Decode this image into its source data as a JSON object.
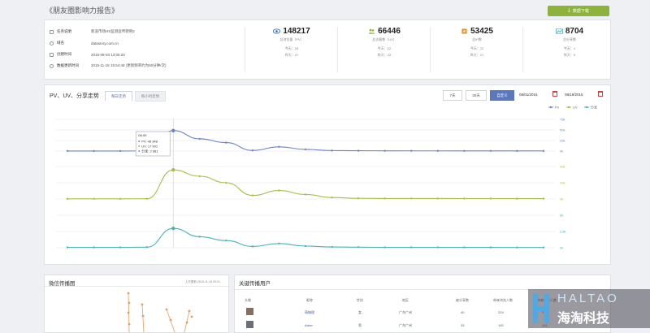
{
  "header": {
    "title": "《朋友圈影响力报告》",
    "download_label": "数据下载"
  },
  "info": {
    "rows": [
      {
        "label": "任务说明",
        "value": "新浪市场HS监测宣传转例2"
      },
      {
        "label": "域名",
        "value": "datastory.com.cn"
      },
      {
        "label": "创建时间",
        "value": "2015-08-03 13:05:20"
      },
      {
        "label": "数据更新时间",
        "value": "2015-11-18 15:54:48 (更新频率约为60分钟/次)"
      }
    ]
  },
  "stats": [
    {
      "value": "148217",
      "label": "总浏览量（PV）",
      "today": "今天：24",
      "yesterday": "昨天：47",
      "icon": "eye-icon",
      "color": "#3b6fb6"
    },
    {
      "value": "66446",
      "label": "总访客数（UV）",
      "today": "今天：12",
      "yesterday": "昨天：23",
      "icon": "people-icon",
      "color": "#8db33d"
    },
    {
      "value": "53425",
      "label": "总IP数",
      "today": "今天：11",
      "yesterday": "昨天：21",
      "icon": "ip-icon",
      "color": "#e29b2e"
    },
    {
      "value": "8704",
      "label": "总分享数",
      "today": "今天：1",
      "yesterday": "昨天：5",
      "icon": "trend-icon",
      "color": "#3fa7b8"
    }
  ],
  "chart_section": {
    "title": "PV、UV、分享走势",
    "tabs": [
      "每日走势",
      "每小时走势"
    ],
    "range_buttons": [
      "7天",
      "30天",
      "自定义"
    ],
    "date_from": "08/01/2015",
    "date_to": "08/19/2015",
    "legend": [
      "PV",
      "UV",
      "分享"
    ],
    "tooltip": {
      "date": "08-05",
      "lines": [
        "PV: 48 348",
        "UV: 17 901",
        "分享: 2 981"
      ]
    },
    "axes": {
      "pv_ticks": [
        "75k",
        "50k",
        "25k",
        "0k"
      ],
      "uv_ticks": [
        "20k",
        "10k",
        "0k"
      ],
      "share_ticks": [
        "5k",
        "2.5k",
        "0k"
      ]
    }
  },
  "chart_data": {
    "type": "line",
    "x": [
      1,
      2,
      3,
      4,
      5,
      6,
      7,
      8,
      9,
      10,
      11,
      12,
      13,
      14,
      15,
      16,
      17,
      18,
      19
    ],
    "series": [
      {
        "name": "PV",
        "color": "#6d84c4",
        "ylim": [
          0,
          75000
        ],
        "values": [
          200,
          200,
          200,
          300,
          48348,
          29000,
          20000,
          1500,
          10000,
          4000,
          1200,
          800,
          600,
          500,
          500,
          400,
          400,
          300,
          300
        ]
      },
      {
        "name": "UV",
        "color": "#a9be48",
        "ylim": [
          0,
          20000
        ],
        "values": [
          100,
          100,
          100,
          150,
          17901,
          14000,
          10000,
          2200,
          5200,
          2800,
          900,
          400,
          300,
          300,
          300,
          250,
          250,
          200,
          200
        ]
      },
      {
        "name": "分享",
        "color": "#4ab3ba",
        "ylim": [
          0,
          5000
        ],
        "values": [
          50,
          50,
          50,
          80,
          2981,
          1700,
          1100,
          200,
          650,
          250,
          120,
          80,
          60,
          60,
          60,
          50,
          50,
          40,
          40
        ]
      }
    ]
  },
  "weixin": {
    "title": "微信传播图",
    "updated": "上次更新:2015-11-18 00:01"
  },
  "key_users": {
    "title": "关键传播用户",
    "headers": [
      "头像",
      "昵称",
      "性别",
      "地区",
      "被分享数",
      "带来浏览人数",
      "带来访客人数"
    ],
    "rows": [
      [
        "萌恼理",
        "女",
        "广东广州",
        "40",
        "224",
        "178"
      ],
      [
        "Arber",
        "男",
        "广东广州",
        "33",
        "192",
        "101"
      ]
    ]
  },
  "watermark": {
    "en": "HALTAO",
    "cn": "海淘科技"
  }
}
